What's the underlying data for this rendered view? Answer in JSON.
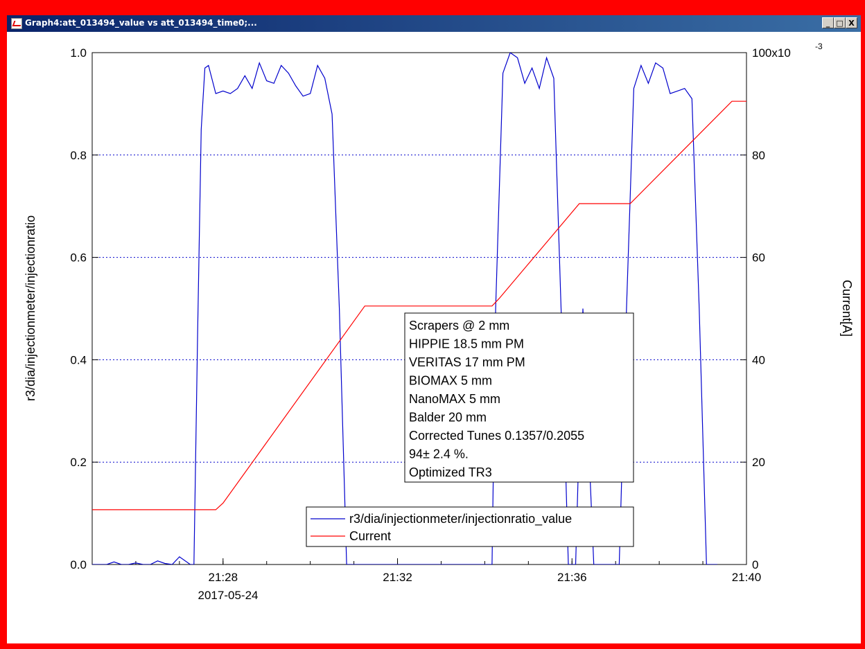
{
  "window": {
    "title": "Graph4:att_013494_value vs att_013494_time0;...",
    "buttons": {
      "minimize": "_",
      "maximize": "□",
      "close": "X"
    }
  },
  "chart_data": {
    "type": "line",
    "xlabel": "",
    "x_tick_labels": [
      "21:28",
      "21:32",
      "21:36",
      "21:40"
    ],
    "x_date_label": "2017-05-24",
    "ylabel_left": "r3/dia/injectionmeter/injectionratio",
    "ylabel_right": "Current[A]",
    "y_left_range": [
      0,
      1
    ],
    "y_left_ticks": [
      "0.0",
      "0.2",
      "0.4",
      "0.6",
      "0.8",
      "1.0"
    ],
    "y_right_range": [
      0,
      0.1
    ],
    "y_right_ticks": [
      "0",
      "20",
      "40",
      "60",
      "80",
      "100x10"
    ],
    "y_right_exponent": "-3",
    "x_range": [
      "21:25:00",
      "21:40:00"
    ],
    "grid": "horizontal dotted",
    "legend_placement": "bottom-center",
    "colors": {
      "injection": "#0000cc",
      "current": "#ff0000",
      "grid": "#0000cc"
    },
    "series": [
      {
        "name": "r3/dia/injectionmeter/injectionratio_value",
        "axis": "left",
        "x": [
          "21:25:00",
          "21:25:20",
          "21:25:30",
          "21:25:40",
          "21:25:50",
          "21:26:00",
          "21:26:10",
          "21:26:20",
          "21:26:30",
          "21:26:40",
          "21:26:50",
          "21:27:00",
          "21:27:15",
          "21:27:20",
          "21:27:25",
          "21:27:30",
          "21:27:35",
          "21:27:40",
          "21:27:50",
          "21:28:00",
          "21:28:10",
          "21:28:20",
          "21:28:30",
          "21:28:40",
          "21:28:50",
          "21:29:00",
          "21:29:10",
          "21:29:20",
          "21:29:30",
          "21:29:40",
          "21:29:50",
          "21:30:00",
          "21:30:10",
          "21:30:20",
          "21:30:30",
          "21:30:40",
          "21:30:50",
          "21:31:00",
          "21:31:05",
          "21:34:10",
          "21:34:15",
          "21:34:25",
          "21:34:35",
          "21:34:45",
          "21:34:55",
          "21:35:05",
          "21:35:15",
          "21:35:25",
          "21:35:35",
          "21:35:45",
          "21:35:55",
          "21:36:05",
          "21:36:15",
          "21:36:30",
          "21:37:05",
          "21:37:15",
          "21:37:25",
          "21:37:35",
          "21:37:45",
          "21:37:55",
          "21:38:05",
          "21:38:15",
          "21:38:25",
          "21:38:35",
          "21:38:45",
          "21:38:55",
          "21:39:05",
          "21:39:20"
        ],
        "y": [
          0.0,
          0.0,
          0.005,
          0.0,
          0.0,
          0.003,
          0.0,
          0.0,
          0.007,
          0.002,
          0.0,
          0.015,
          0.0,
          0.0,
          0.45,
          0.85,
          0.97,
          0.975,
          0.92,
          0.925,
          0.92,
          0.93,
          0.955,
          0.93,
          0.98,
          0.945,
          0.94,
          0.975,
          0.96,
          0.935,
          0.915,
          0.92,
          0.975,
          0.95,
          0.88,
          0.5,
          0.0,
          0.0,
          0.0,
          0.0,
          0.5,
          0.96,
          1.0,
          0.99,
          0.94,
          0.97,
          0.93,
          0.99,
          0.95,
          0.5,
          0.0,
          0.0,
          0.5,
          0.0,
          0.0,
          0.5,
          0.93,
          0.975,
          0.94,
          0.98,
          0.97,
          0.92,
          0.925,
          0.93,
          0.91,
          0.5,
          0.0,
          0.0
        ]
      },
      {
        "name": "Current",
        "axis": "right",
        "x": [
          "21:25:00",
          "21:27:50",
          "21:28:00",
          "21:31:15",
          "21:34:10",
          "21:34:20",
          "21:36:10",
          "21:37:20",
          "21:39:40",
          "21:42:00"
        ],
        "y": [
          0.0107,
          0.0107,
          0.012,
          0.0505,
          0.0505,
          0.052,
          0.0705,
          0.0705,
          0.0905,
          0.0905
        ]
      }
    ],
    "annotation": [
      "Scrapers @ 2 mm",
      "HIPPIE 18.5 mm PM",
      "VERITAS 17 mm PM",
      "BIOMAX 5 mm",
      "NanoMAX 5 mm",
      "Balder 20 mm",
      "Corrected Tunes 0.1357/0.2055",
      "94± 2.4 %.",
      "Optimized TR3"
    ]
  }
}
